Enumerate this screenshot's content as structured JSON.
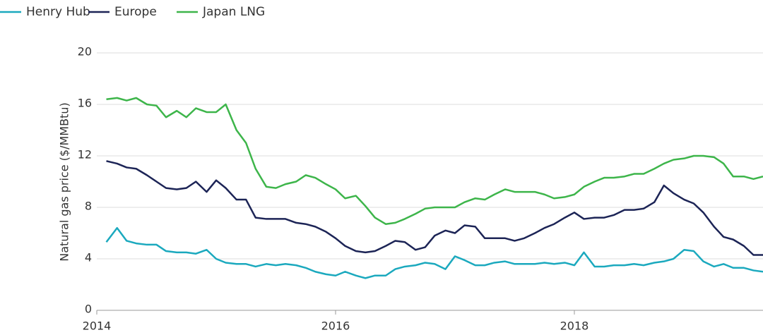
{
  "chart_data": {
    "type": "line",
    "ylabel": "Natural gas price ($/MMBtu)",
    "x": [
      2014.08,
      2014.17,
      2014.25,
      2014.33,
      2014.42,
      2014.5,
      2014.58,
      2014.67,
      2014.75,
      2014.83,
      2014.92,
      2015.0,
      2015.08,
      2015.17,
      2015.25,
      2015.33,
      2015.42,
      2015.5,
      2015.58,
      2015.67,
      2015.75,
      2015.83,
      2015.92,
      2016.0,
      2016.08,
      2016.17,
      2016.25,
      2016.33,
      2016.42,
      2016.5,
      2016.58,
      2016.67,
      2016.75,
      2016.83,
      2016.92,
      2017.0,
      2017.08,
      2017.17,
      2017.25,
      2017.33,
      2017.42,
      2017.5,
      2017.58,
      2017.67,
      2017.75,
      2017.83,
      2017.92,
      2018.0,
      2018.08,
      2018.17,
      2018.25,
      2018.33,
      2018.42,
      2018.5,
      2018.58,
      2018.67,
      2018.75,
      2018.83,
      2018.92,
      2019.0,
      2019.08,
      2019.17,
      2019.25,
      2019.33,
      2019.42,
      2019.5,
      2019.58
    ],
    "series": [
      {
        "name": "Henry Hub",
        "color": "#1ba9be",
        "values": [
          5.3,
          6.4,
          5.4,
          5.2,
          5.1,
          5.1,
          4.6,
          4.5,
          4.5,
          4.4,
          4.7,
          4.0,
          3.7,
          3.6,
          3.6,
          3.4,
          3.6,
          3.5,
          3.6,
          3.5,
          3.3,
          3.0,
          2.8,
          2.7,
          3.0,
          2.7,
          2.5,
          2.7,
          2.7,
          3.2,
          3.4,
          3.5,
          3.7,
          3.6,
          3.2,
          4.2,
          3.9,
          3.5,
          3.5,
          3.7,
          3.8,
          3.6,
          3.6,
          3.6,
          3.7,
          3.6,
          3.7,
          3.5,
          4.5,
          3.4,
          3.4,
          3.5,
          3.5,
          3.6,
          3.5,
          3.7,
          3.8,
          4.0,
          4.7,
          4.6,
          3.8,
          3.4,
          3.6,
          3.3,
          3.3,
          3.1,
          3.0
        ]
      },
      {
        "name": "Europe",
        "color": "#1c2456",
        "values": [
          11.6,
          11.4,
          11.1,
          11.0,
          10.5,
          10.0,
          9.5,
          9.4,
          9.5,
          10.0,
          9.2,
          10.1,
          9.5,
          8.6,
          8.6,
          7.2,
          7.1,
          7.1,
          7.1,
          6.8,
          6.7,
          6.5,
          6.1,
          5.6,
          5.0,
          4.6,
          4.5,
          4.6,
          5.0,
          5.4,
          5.3,
          4.7,
          4.9,
          5.8,
          6.2,
          6.0,
          6.6,
          6.5,
          5.6,
          5.6,
          5.6,
          5.4,
          5.6,
          6.0,
          6.4,
          6.7,
          7.2,
          7.6,
          7.1,
          7.2,
          7.2,
          7.4,
          7.8,
          7.8,
          7.9,
          8.4,
          9.7,
          9.1,
          8.6,
          8.3,
          7.6,
          6.5,
          5.7,
          5.5,
          5.0,
          4.3,
          4.3
        ]
      },
      {
        "name": "Japan LNG",
        "color": "#3db54a",
        "values": [
          16.4,
          16.5,
          16.3,
          16.5,
          16.0,
          15.9,
          15.0,
          15.5,
          15.0,
          15.7,
          15.4,
          15.4,
          16.0,
          14.0,
          13.0,
          11.0,
          9.6,
          9.5,
          9.8,
          10.0,
          10.5,
          10.3,
          9.8,
          9.4,
          8.7,
          8.9,
          8.1,
          7.2,
          6.7,
          6.8,
          7.1,
          7.5,
          7.9,
          8.0,
          8.0,
          8.0,
          8.4,
          8.7,
          8.6,
          9.0,
          9.4,
          9.2,
          9.2,
          9.2,
          9.0,
          8.7,
          8.8,
          9.0,
          9.6,
          10.0,
          10.3,
          10.3,
          10.4,
          10.6,
          10.6,
          11.0,
          11.4,
          11.7,
          11.8,
          12.0,
          12.0,
          11.9,
          11.4,
          10.4,
          10.4,
          10.2,
          10.4
        ]
      }
    ],
    "xlim": [
      2014,
      2019.58
    ],
    "xticks": [
      2014,
      2016,
      2018
    ],
    "ylim": [
      0,
      20
    ],
    "yticks": [
      0,
      4,
      8,
      12,
      16,
      20
    ],
    "grid": true,
    "legend": "top-left"
  }
}
